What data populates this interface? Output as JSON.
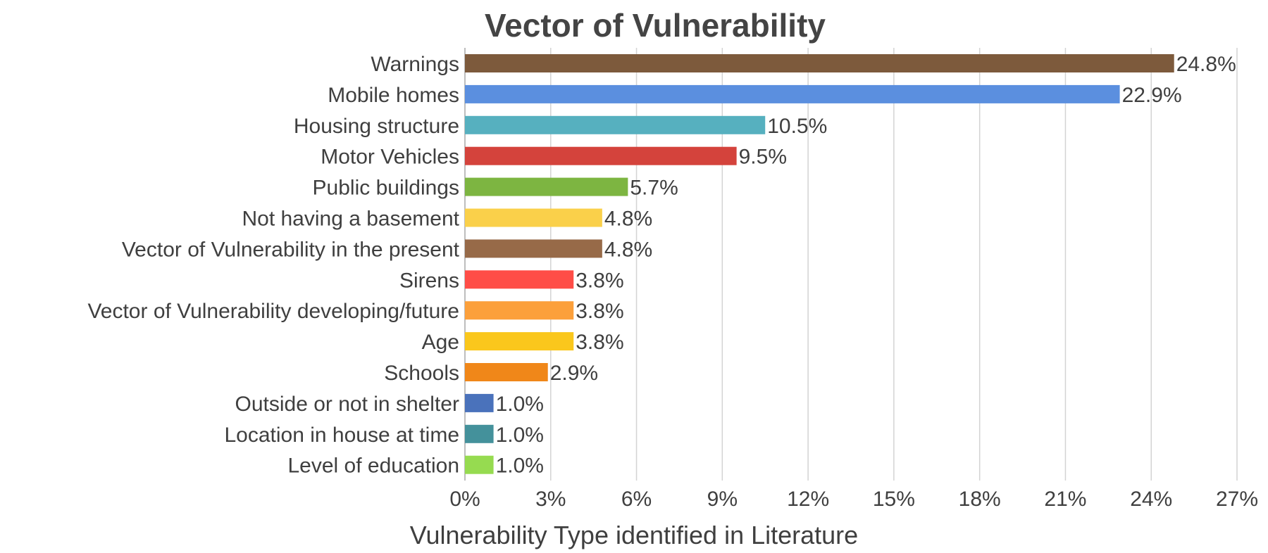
{
  "chart_data": {
    "type": "bar",
    "orientation": "horizontal",
    "title": "Vector of Vulnerability",
    "xlabel": "Vulnerability Type identified in Literature",
    "ylabel": "",
    "xlim": [
      0,
      27
    ],
    "ticks": [
      0,
      3,
      6,
      9,
      12,
      15,
      18,
      21,
      24,
      27
    ],
    "tick_labels": [
      "0%",
      "3%",
      "6%",
      "9%",
      "12%",
      "15%",
      "18%",
      "21%",
      "24%",
      "27%"
    ],
    "grid": true,
    "legend": "none",
    "categories": [
      "Warnings",
      "Mobile homes",
      "Housing structure",
      "Motor Vehicles",
      "Public buildings",
      "Not having a basement",
      "Vector of Vulnerability in the present",
      "Sirens",
      "Vector of Vulnerability developing/future",
      "Age",
      "Schools",
      "Outside or not in shelter",
      "Location in house at time",
      "Level of education"
    ],
    "values": [
      24.8,
      22.9,
      10.5,
      9.5,
      5.7,
      4.8,
      4.8,
      3.8,
      3.8,
      3.8,
      2.9,
      1.0,
      1.0,
      1.0
    ],
    "value_labels": [
      "24.8%",
      "22.9%",
      "10.5%",
      "9.5%",
      "5.7%",
      "4.8%",
      "4.8%",
      "3.8%",
      "3.8%",
      "3.8%",
      "2.9%",
      "1.0%",
      "1.0%",
      "1.0%"
    ],
    "colors": [
      "#7d5a3c",
      "#5b8fdf",
      "#56b0bf",
      "#d4433c",
      "#7db541",
      "#fad04a",
      "#976a48",
      "#ff4d47",
      "#fca03b",
      "#fac71c",
      "#f08719",
      "#4a72bb",
      "#44919b",
      "#96db50"
    ]
  }
}
